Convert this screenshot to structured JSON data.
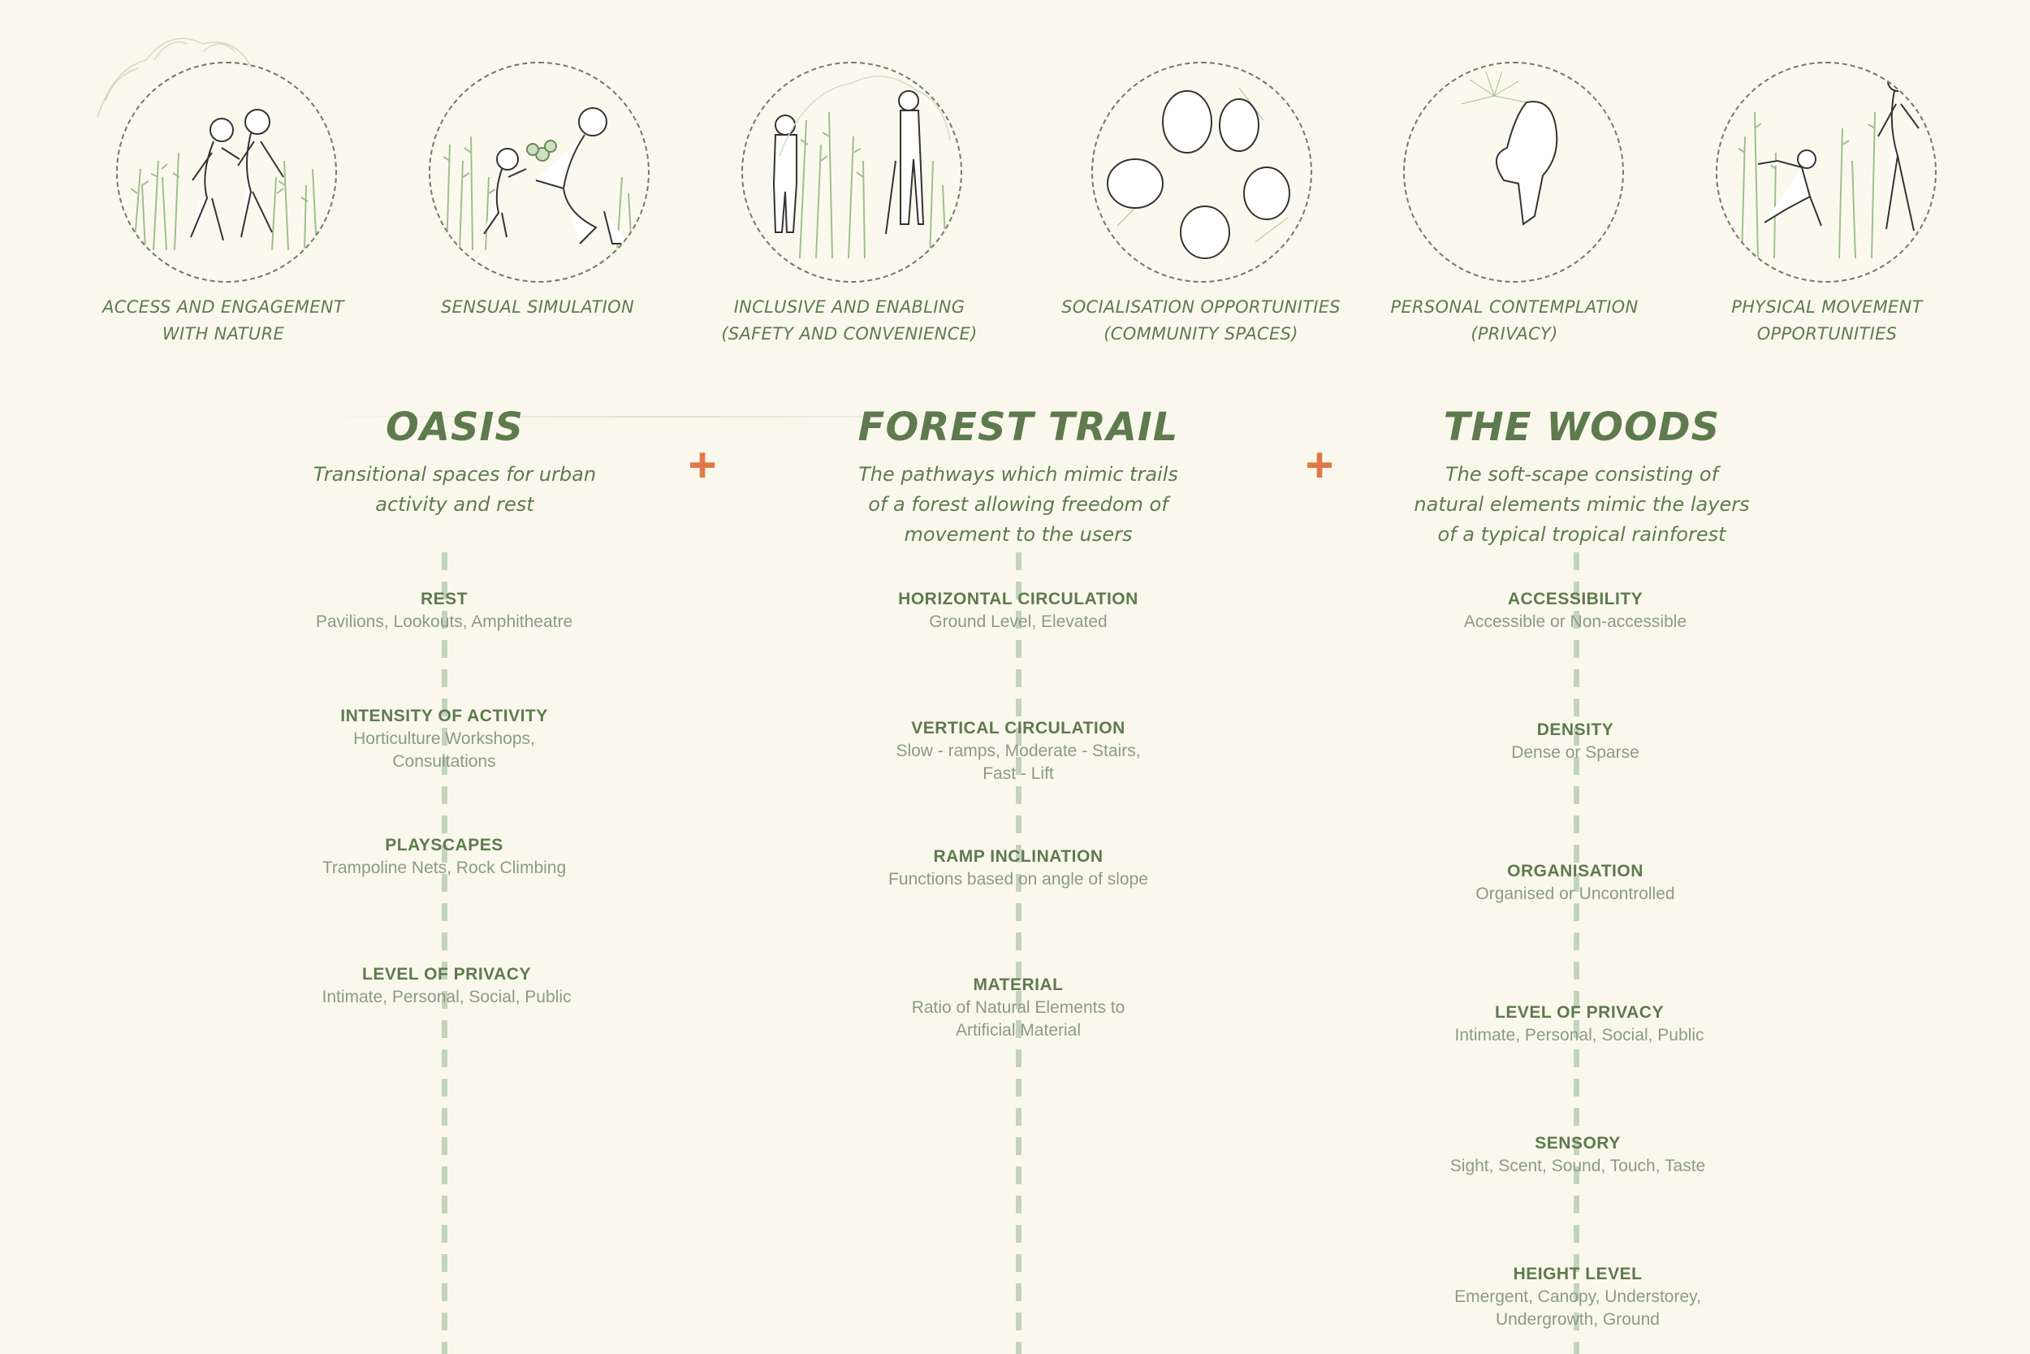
{
  "captions": [
    {
      "lines": [
        "ACCESS AND ENGAGEMENT",
        "WITH NATURE"
      ]
    },
    {
      "lines": [
        "SENSUAL SIMULATION"
      ]
    },
    {
      "lines": [
        "INCLUSIVE AND ENABLING",
        "(SAFETY AND CONVENIENCE)"
      ]
    },
    {
      "lines": [
        "SOCIALISATION OPPORTUNITIES",
        "(COMMUNITY SPACES)"
      ]
    },
    {
      "lines": [
        "PERSONAL CONTEMPLATION",
        "(PRIVACY)"
      ]
    },
    {
      "lines": [
        "PHYSICAL MOVEMENT",
        "OPPORTUNITIES"
      ]
    }
  ],
  "sections": [
    {
      "title": "OASIS",
      "desc": [
        "Transitional spaces for urban",
        "activity and rest"
      ],
      "items": [
        {
          "title": "REST",
          "desc": [
            "Pavilions, Lookouts, Amphitheatre"
          ]
        },
        {
          "title": "INTENSITY OF ACTIVITY",
          "desc": [
            "Horticulture Workshops,",
            "Consultations"
          ]
        },
        {
          "title": "PLAYSCAPES",
          "desc": [
            "Trampoline Nets, Rock Climbing"
          ]
        },
        {
          "title": "LEVEL OF PRIVACY",
          "desc": [
            "Intimate, Personal, Social, Public"
          ]
        }
      ]
    },
    {
      "title": "FOREST TRAIL",
      "desc": [
        "The pathways which mimic trails",
        "of a forest allowing freedom of",
        "movement to the users"
      ],
      "items": [
        {
          "title": "HORIZONTAL CIRCULATION",
          "desc": [
            "Ground Level, Elevated"
          ]
        },
        {
          "title": "VERTICAL CIRCULATION",
          "desc": [
            "Slow - ramps, Moderate - Stairs,",
            "Fast - Lift"
          ]
        },
        {
          "title": "RAMP INCLINATION",
          "desc": [
            "Functions based on angle of slope"
          ]
        },
        {
          "title": "MATERIAL",
          "desc": [
            "Ratio of Natural Elements to",
            "Artificial Material"
          ]
        }
      ]
    },
    {
      "title": "THE WOODS",
      "desc": [
        "The soft-scape consisting of",
        "natural elements mimic the layers",
        "of a typical tropical rainforest"
      ],
      "items": [
        {
          "title": "ACCESSIBILITY",
          "desc": [
            "Accessible or Non-accessible"
          ]
        },
        {
          "title": "DENSITY",
          "desc": [
            "Dense or Sparse"
          ]
        },
        {
          "title": "ORGANISATION",
          "desc": [
            "Organised or Uncontrolled"
          ]
        },
        {
          "title": "LEVEL OF PRIVACY",
          "desc": [
            "Intimate, Personal, Social, Public"
          ]
        },
        {
          "title": "SENSORY",
          "desc": [
            "Sight, Scent, Sound, Touch, Taste"
          ]
        },
        {
          "title": "HEIGHT LEVEL",
          "desc": [
            "Emergent, Canopy, Understorey,",
            "Undergrowth, Ground"
          ]
        }
      ]
    }
  ],
  "plus_sign": "+",
  "colors": {
    "accent": "#e0784a",
    "green": "#5e7a4e",
    "muted": "#8c9a86",
    "spine": "#c4d4bc"
  }
}
